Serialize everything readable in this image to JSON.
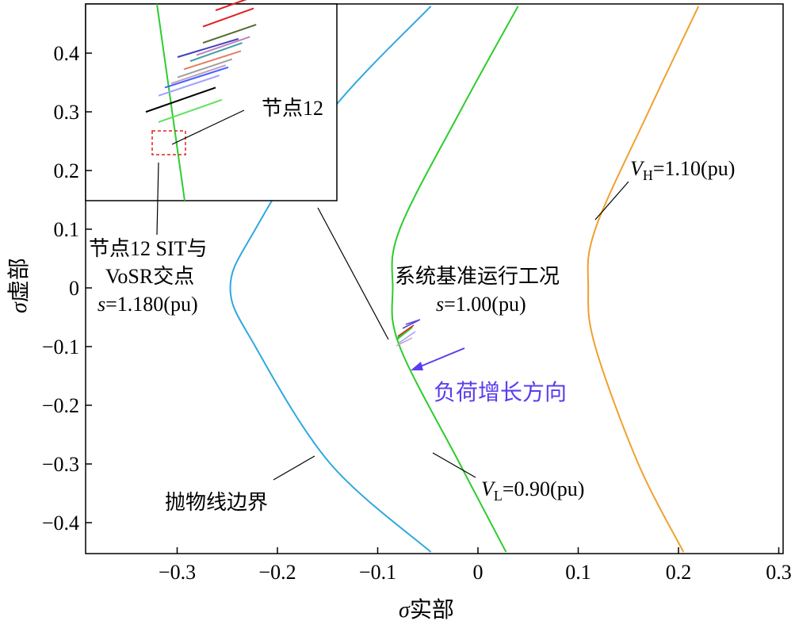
{
  "chart_data": {
    "type": "line",
    "xlabel_sym": "σ",
    "xlabel": "实部",
    "ylabel_sym": "σ",
    "ylabel": "虚部",
    "xlim": [
      -0.39,
      0.31
    ],
    "ylim": [
      -0.45,
      0.48
    ],
    "xticks": [
      -0.3,
      -0.2,
      -0.1,
      0,
      0.1,
      0.2,
      0.3
    ],
    "xtick_labels": [
      "−0.3",
      "−0.2",
      "−0.1",
      "0",
      "0.1",
      "0.2",
      "0.3"
    ],
    "yticks": [
      -0.4,
      -0.3,
      -0.2,
      -0.1,
      0,
      0.1,
      0.2,
      0.3,
      0.4
    ],
    "ytick_labels": [
      "−0.4",
      "−0.3",
      "−0.2",
      "−0.1",
      "0",
      "0.1",
      "0.2",
      "0.3",
      "0.4"
    ],
    "series": [
      {
        "name": "抛物线边界",
        "color": "#2fa8e0",
        "vertex_x": -0.247,
        "vertex_y": 0,
        "points": [
          [
            -0.047,
            -0.45
          ],
          [
            -0.147,
            -0.3
          ],
          [
            -0.222,
            -0.1
          ],
          [
            -0.247,
            0
          ],
          [
            -0.222,
            0.1
          ],
          [
            -0.147,
            0.3
          ],
          [
            -0.047,
            0.48
          ]
        ]
      },
      {
        "name": "VL=0.90(pu)",
        "color": "#2ecc2e",
        "vertex_x": -0.085,
        "vertex_y": 0,
        "points": [
          [
            0.028,
            -0.45
          ],
          [
            -0.018,
            -0.3
          ],
          [
            -0.078,
            -0.1
          ],
          [
            -0.085,
            0
          ],
          [
            -0.078,
            0.1
          ],
          [
            -0.018,
            0.3
          ],
          [
            0.04,
            0.48
          ]
        ]
      },
      {
        "name": "VH=1.10(pu)",
        "color": "#f0a030",
        "vertex_x": 0.11,
        "vertex_y": 0,
        "points": [
          [
            0.205,
            -0.45
          ],
          [
            0.16,
            -0.3
          ],
          [
            0.117,
            -0.1
          ],
          [
            0.11,
            0
          ],
          [
            0.117,
            0.1
          ],
          [
            0.17,
            0.3
          ],
          [
            0.22,
            0.48
          ]
        ]
      }
    ],
    "bus_trajectories_inset": [
      {
        "color": "#e02020",
        "from": [
          -0.16,
          0.396
        ],
        "to": [
          -0.12,
          0.414
        ]
      },
      {
        "color": "#e02020",
        "from": [
          -0.17,
          0.38
        ],
        "to": [
          -0.13,
          0.398
        ]
      },
      {
        "color": "#556b2f",
        "from": [
          -0.17,
          0.364
        ],
        "to": [
          -0.128,
          0.382
        ]
      },
      {
        "color": "#c080c0",
        "from": [
          -0.175,
          0.352
        ],
        "to": [
          -0.133,
          0.37
        ]
      },
      {
        "color": "#4040c0",
        "from": [
          -0.19,
          0.35
        ],
        "to": [
          -0.142,
          0.368
        ]
      },
      {
        "color": "#40a0a0",
        "from": [
          -0.18,
          0.346
        ],
        "to": [
          -0.139,
          0.364
        ]
      },
      {
        "color": "#e08060",
        "from": [
          -0.185,
          0.338
        ],
        "to": [
          -0.14,
          0.356
        ]
      },
      {
        "color": "#a0a0a0",
        "from": [
          -0.19,
          0.33
        ],
        "to": [
          -0.147,
          0.348
        ]
      },
      {
        "color": "#c0a0c0",
        "from": [
          -0.195,
          0.324
        ],
        "to": [
          -0.152,
          0.342
        ]
      },
      {
        "color": "#4060ff",
        "from": [
          -0.2,
          0.32
        ],
        "to": [
          -0.15,
          0.34
        ]
      },
      {
        "color": "#a0a0ff",
        "from": [
          -0.205,
          0.312
        ],
        "to": [
          -0.157,
          0.332
        ]
      },
      {
        "color": "#000000",
        "from": [
          -0.215,
          0.296
        ],
        "to": [
          -0.16,
          0.32
        ]
      },
      {
        "color": "#60e060",
        "from": [
          -0.205,
          0.286
        ],
        "to": [
          -0.155,
          0.308
        ]
      }
    ],
    "base_operating_s": 1.0,
    "sit_vosr_intersection_s": 1.18,
    "VL": 0.9,
    "VH": 1.1
  },
  "annotations": {
    "node12": "节点12",
    "sit_line1": "节点12 SIT与",
    "sit_line2": "VoSR交点",
    "sit_s": "s",
    "sit_s_val": "=1.180(pu)",
    "base_line1": "系统基准运行工况",
    "base_s": "s",
    "base_s_val": "=1.00(pu)",
    "load_dir": "负荷增长方向",
    "parabola": "抛物线边界",
    "vl_sym": "V",
    "vl_sub": "L",
    "vl_val": "=0.90(pu)",
    "vh_sym": "V",
    "vh_sub": "H",
    "vh_val": "=1.10(pu)"
  },
  "colors": {
    "parabola": "#2fa8e0",
    "vl": "#2ecc2e",
    "vh": "#f0a030",
    "load_arrow": "#5b3cf0",
    "sit_box": "#e02020"
  }
}
